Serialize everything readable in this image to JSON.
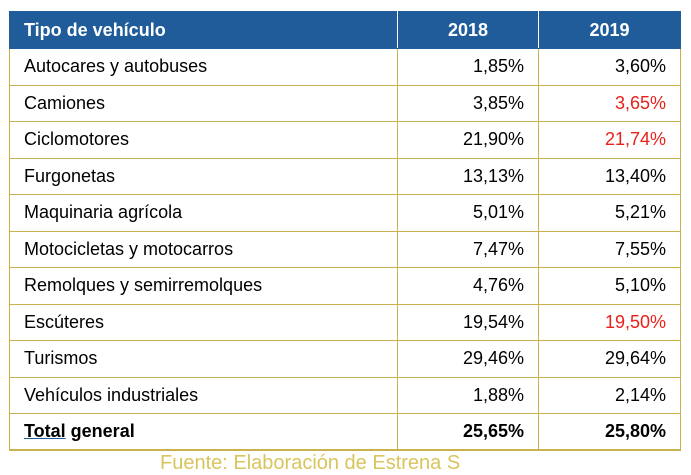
{
  "table": {
    "headers": [
      "Tipo de vehículo",
      "2018",
      "2019"
    ],
    "rows": [
      {
        "type": "Autocares y autobuses",
        "y2018": "1,85%",
        "y2019": "3,60%",
        "red2019": false
      },
      {
        "type": "Camiones",
        "y2018": "3,85%",
        "y2019": "3,65%",
        "red2019": true
      },
      {
        "type": "Ciclomotores",
        "y2018": "21,90%",
        "y2019": "21,74%",
        "red2019": true
      },
      {
        "type": "Furgonetas",
        "y2018": "13,13%",
        "y2019": "13,40%",
        "red2019": false
      },
      {
        "type": "Maquinaria agrícola",
        "y2018": "5,01%",
        "y2019": "5,21%",
        "red2019": false
      },
      {
        "type": "Motocicletas y motocarros",
        "y2018": "7,47%",
        "y2019": "7,55%",
        "red2019": false
      },
      {
        "type": "Remolques y semirremolques",
        "y2018": "4,76%",
        "y2019": "5,10%",
        "red2019": false
      },
      {
        "type": "Escúteres",
        "y2018": "19,54%",
        "y2019": "19,50%",
        "red2019": true
      },
      {
        "type": "Turismos",
        "y2018": "29,46%",
        "y2019": "29,64%",
        "red2019": false
      },
      {
        "type": "Vehículos industriales",
        "y2018": "1,88%",
        "y2019": "2,14%",
        "red2019": false
      }
    ],
    "total": {
      "label_underlined": "Total",
      "label_rest": " general",
      "y2018": "25,65%",
      "y2019": "25,80%"
    }
  },
  "footer_partial": "Fuente: Elaboración de Estrena S",
  "colors": {
    "header_bg": "#1f5c99",
    "header_text": "#ffffff",
    "grid": "#c9b24d",
    "decrease": "#e8201a",
    "footer_text": "#d8c55c"
  }
}
